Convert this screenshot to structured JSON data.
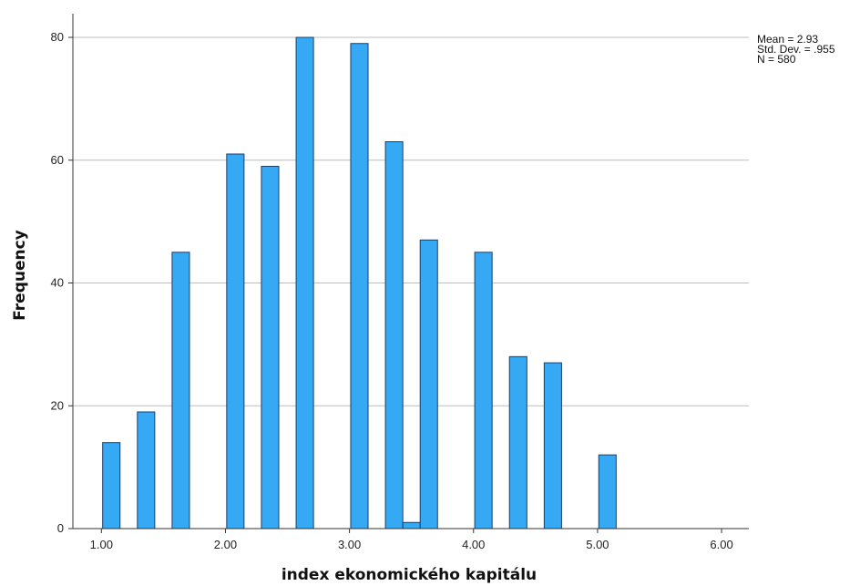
{
  "chart_data": {
    "type": "bar",
    "title": "",
    "xlabel": "index ekonomického kapitálu",
    "ylabel": "Frequency",
    "xlim": [
      0.77,
      6.22
    ],
    "ylim": [
      0,
      80
    ],
    "x_ticks": [
      "1.00",
      "2.00",
      "3.00",
      "4.00",
      "5.00",
      "6.00"
    ],
    "y_ticks": [
      "0",
      "20",
      "40",
      "60",
      "80"
    ],
    "grid": "horizontal",
    "bar_color": "#36A9F5",
    "bar_edge_color": "#1A3F6B",
    "bars": [
      {
        "x": 1.08,
        "value": 14
      },
      {
        "x": 1.36,
        "value": 19
      },
      {
        "x": 1.64,
        "value": 45
      },
      {
        "x": 2.08,
        "value": 61
      },
      {
        "x": 2.36,
        "value": 59
      },
      {
        "x": 2.64,
        "value": 80
      },
      {
        "x": 3.08,
        "value": 79
      },
      {
        "x": 3.36,
        "value": 63
      },
      {
        "x": 3.5,
        "value": 1
      },
      {
        "x": 3.64,
        "value": 47
      },
      {
        "x": 4.08,
        "value": 45
      },
      {
        "x": 4.36,
        "value": 28
      },
      {
        "x": 4.64,
        "value": 27
      },
      {
        "x": 5.08,
        "value": 12
      }
    ],
    "bar_width": 0.14,
    "stats": {
      "mean": "Mean = 2.93",
      "std": "Std. Dev. = .955",
      "n": "N = 580"
    }
  }
}
